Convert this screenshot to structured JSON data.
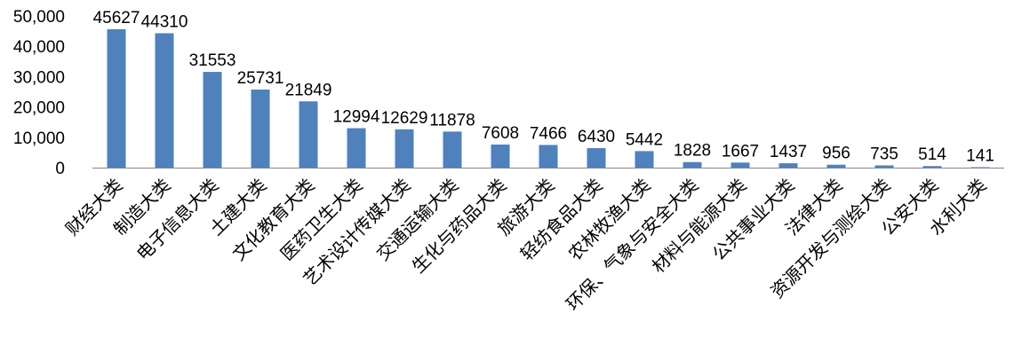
{
  "chart_data": {
    "type": "bar",
    "title": "",
    "xlabel": "",
    "ylabel": "",
    "categories": [
      "财经大类",
      "制造大类",
      "电子信息大类",
      "土建大类",
      "文化教育大类",
      "医药卫生大类",
      "艺术设计传媒大类",
      "交通运输大类",
      "生化与药品大类",
      "旅游大类",
      "轻纺食品大类",
      "农林牧渔大类",
      "环保、气象与安全大类",
      "材料与能源大类",
      "公共事业大类",
      "法律大类",
      "资源开发与测绘大类",
      "公安大类",
      "水利大类"
    ],
    "values": [
      45627,
      44310,
      31553,
      25731,
      21849,
      12994,
      12629,
      11878,
      7608,
      7466,
      6430,
      5442,
      1828,
      1667,
      1437,
      956,
      735,
      514,
      141
    ],
    "ylim": [
      0,
      50000
    ],
    "yticks": [
      "0",
      "10,000",
      "20,000",
      "30,000",
      "40,000",
      "50,000"
    ],
    "grid": false,
    "legend": "none",
    "bar_color": "#4f81bd",
    "axis_color": "#868686"
  }
}
